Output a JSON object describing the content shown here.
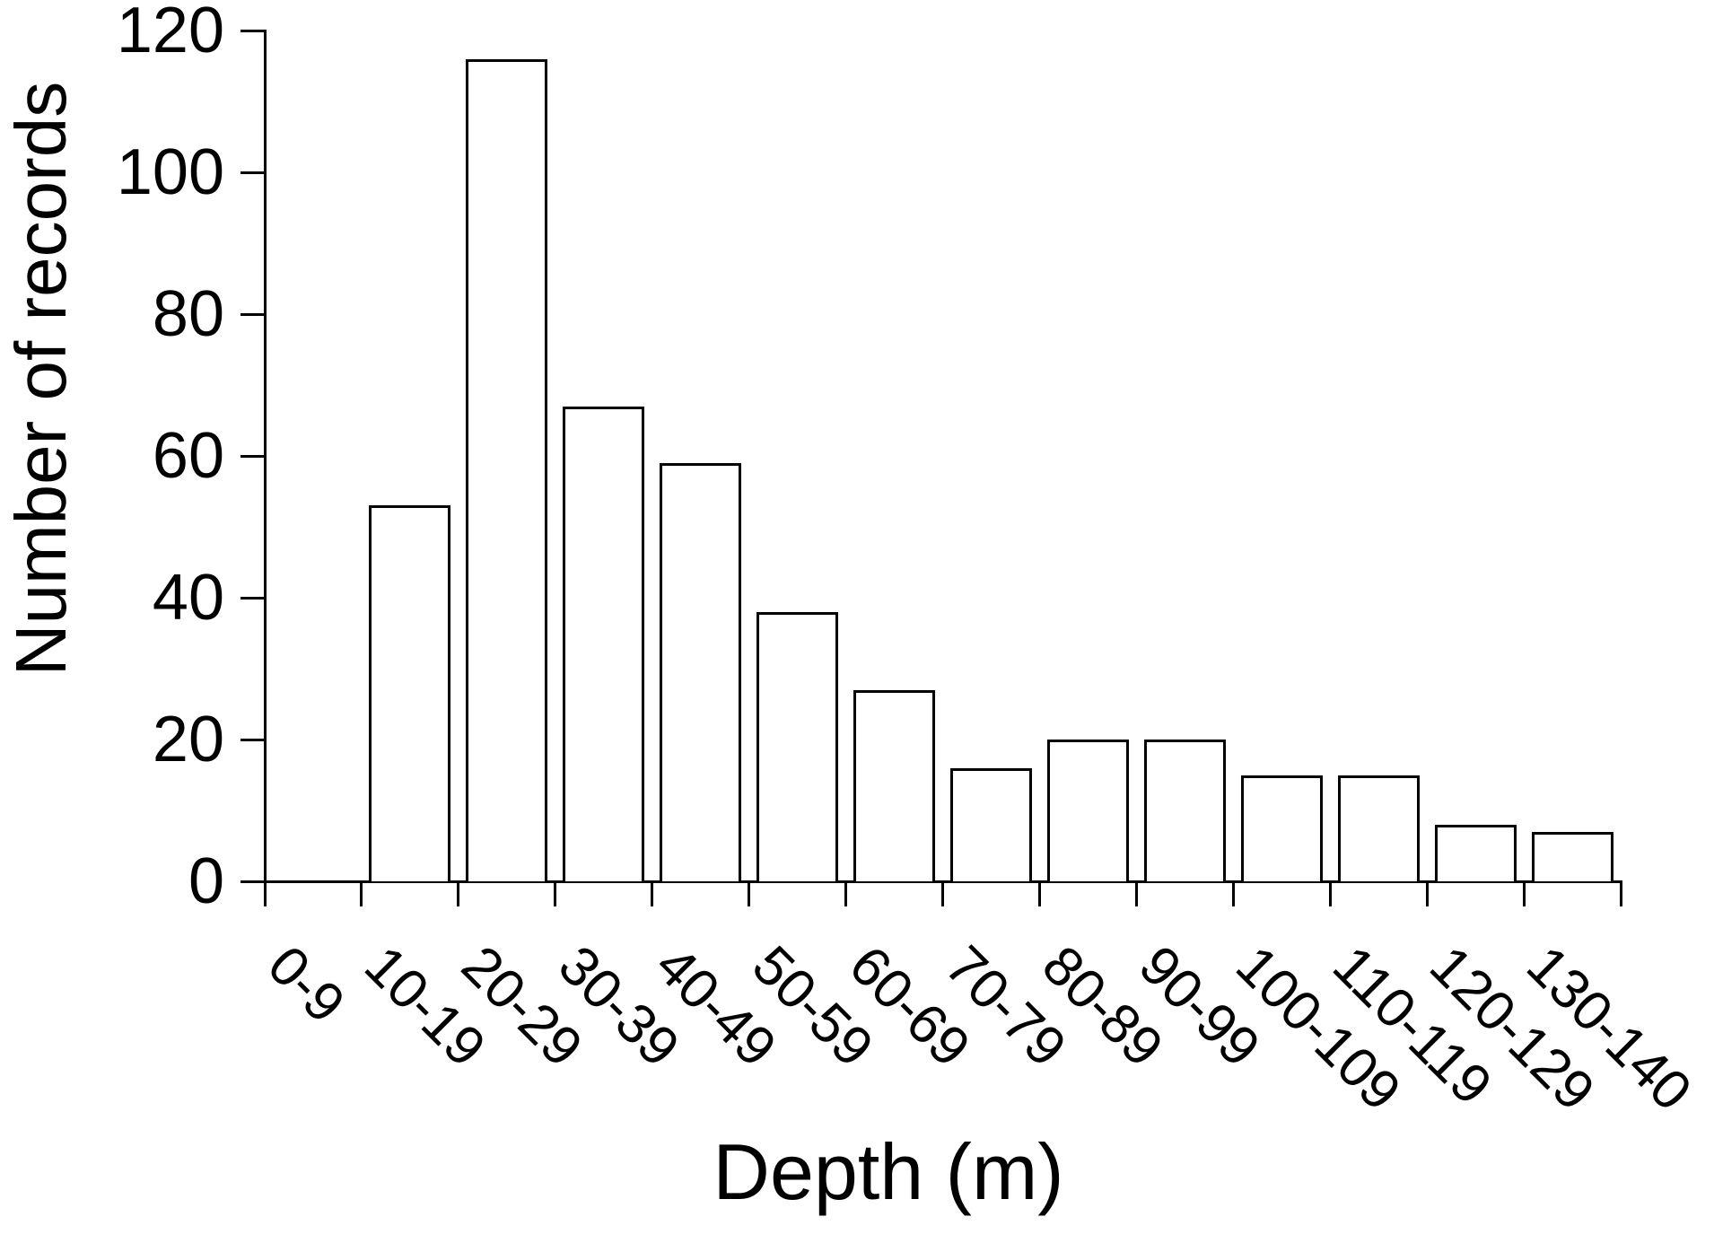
{
  "chart_data": {
    "type": "bar",
    "title": "",
    "xlabel": "Depth (m)",
    "ylabel": "Number of records",
    "categories": [
      "0-9",
      "10-19",
      "20-29",
      "30-39",
      "40-49",
      "50-59",
      "60-69",
      "70-79",
      "80-89",
      "90-99",
      "100-109",
      "110-119",
      "120-129",
      "130-140"
    ],
    "values": [
      0,
      53,
      116,
      67,
      59,
      38,
      27,
      16,
      20,
      20,
      15,
      15,
      8,
      7
    ],
    "ylim": [
      0,
      120
    ],
    "yticks": [
      0,
      20,
      40,
      60,
      80,
      100,
      120
    ],
    "x_tick_label_rotation_deg": 45,
    "grid": false,
    "legend": "none",
    "bar_fill": "#ffffff",
    "bar_stroke": "#000000",
    "axis_color": "#000000",
    "text_color": "#000000",
    "background": "#ffffff"
  }
}
